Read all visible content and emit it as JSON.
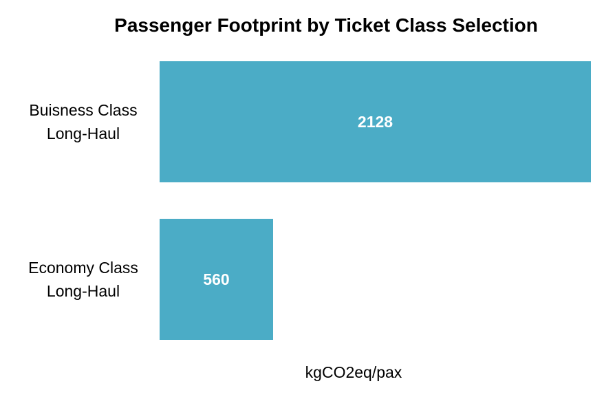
{
  "chart_data": {
    "type": "bar",
    "orientation": "horizontal",
    "title": "Passenger Footprint by Ticket Class Selection",
    "xlabel": "kgCO2eq/pax",
    "ylabel": "",
    "categories": [
      [
        "Buisness Class",
        "Long-Haul"
      ],
      [
        "Economy Class",
        "Long-Haul"
      ]
    ],
    "values": [
      2128,
      560
    ],
    "xlim": [
      0,
      2128
    ],
    "grid": false,
    "legend": "none",
    "bar_color": "#4BACC6",
    "data_label_color": "#FFFFFF"
  }
}
